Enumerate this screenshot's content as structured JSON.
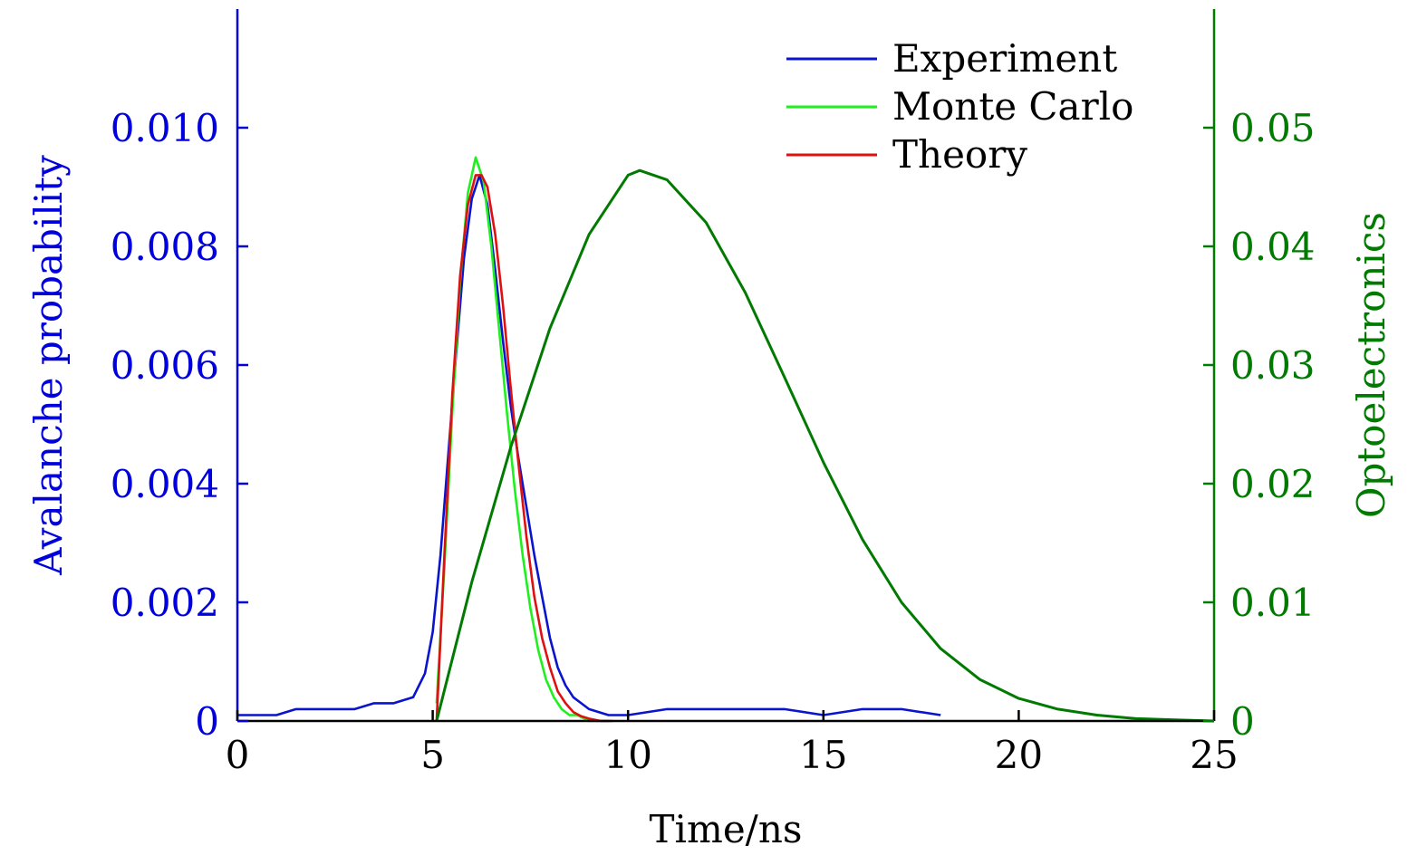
{
  "chart_data": {
    "type": "line",
    "xlabel": "Time/ns",
    "ylabel_left": "Avalanche probability",
    "ylabel_right": "Optoelectronics",
    "xlim": [
      0,
      25
    ],
    "ylim_left": [
      0,
      0.012
    ],
    "ylim_right": [
      0,
      0.06
    ],
    "x_ticks": [
      0,
      5,
      10,
      15,
      20,
      25
    ],
    "x_tick_labels": [
      "0",
      "5",
      "10",
      "15",
      "20",
      "25"
    ],
    "y_left_ticks": [
      0,
      0.002,
      0.004,
      0.006,
      0.008,
      0.01
    ],
    "y_left_tick_labels": [
      "0",
      "0.002",
      "0.004",
      "0.006",
      "0.008",
      "0.010"
    ],
    "y_right_ticks": [
      0,
      0.01,
      0.02,
      0.03,
      0.04,
      0.05
    ],
    "y_right_tick_labels": [
      "0",
      "0.01",
      "0.02",
      "0.03",
      "0.04",
      "0.05"
    ],
    "grid": false,
    "legend_position": "top-right",
    "colors": {
      "left_axis": "#0000dd",
      "right_axis": "#007a00",
      "frame": "#000000"
    },
    "series": [
      {
        "name": "Experiment",
        "axis": "left",
        "color": "#0a14cc",
        "in_legend": true,
        "x": [
          0,
          0.5,
          1.0,
          1.5,
          2.0,
          2.5,
          3.0,
          3.5,
          4.0,
          4.5,
          4.8,
          5.0,
          5.2,
          5.4,
          5.6,
          5.8,
          6.0,
          6.2,
          6.4,
          6.6,
          6.8,
          7.0,
          7.2,
          7.4,
          7.6,
          7.8,
          8.0,
          8.2,
          8.4,
          8.6,
          8.8,
          9.0,
          9.5,
          10.0,
          11.0,
          12.0,
          13.0,
          14.0,
          15.0,
          16.0,
          17.0,
          18.0
        ],
        "y": [
          0.0001,
          0.0001,
          0.0001,
          0.0002,
          0.0002,
          0.0002,
          0.0002,
          0.0003,
          0.0003,
          0.0004,
          0.0008,
          0.0015,
          0.0028,
          0.0045,
          0.0062,
          0.0078,
          0.0088,
          0.0092,
          0.0087,
          0.0076,
          0.0064,
          0.0053,
          0.0044,
          0.0036,
          0.0028,
          0.0021,
          0.0014,
          0.0009,
          0.0006,
          0.0004,
          0.0003,
          0.0002,
          0.0001,
          0.0001,
          0.0002,
          0.0002,
          0.0002,
          0.0002,
          0.0001,
          0.0002,
          0.0002,
          0.0001
        ]
      },
      {
        "name": "Monte Carlo",
        "axis": "left",
        "color": "#1ef01e",
        "in_legend": true,
        "x": [
          5.1,
          5.3,
          5.5,
          5.7,
          5.9,
          6.1,
          6.3,
          6.5,
          6.7,
          6.9,
          7.1,
          7.3,
          7.5,
          7.7,
          7.9,
          8.1,
          8.3,
          8.5,
          8.7,
          9.0,
          9.5
        ],
        "y": [
          0.0003,
          0.0026,
          0.0052,
          0.0074,
          0.0089,
          0.0095,
          0.0091,
          0.008,
          0.0066,
          0.0052,
          0.0039,
          0.0028,
          0.0019,
          0.0012,
          0.0007,
          0.0004,
          0.0002,
          0.0001,
          0.0001,
          0.0,
          0.0
        ]
      },
      {
        "name": "Theory",
        "axis": "left",
        "color": "#dd1111",
        "in_legend": true,
        "x": [
          5.1,
          5.3,
          5.5,
          5.7,
          5.9,
          6.1,
          6.25,
          6.4,
          6.6,
          6.8,
          7.0,
          7.2,
          7.4,
          7.6,
          7.8,
          8.0,
          8.2,
          8.4,
          8.6,
          8.8,
          9.0,
          9.3,
          9.6
        ],
        "y": [
          0.0,
          0.0028,
          0.0055,
          0.0075,
          0.0087,
          0.0092,
          0.0092,
          0.009,
          0.0082,
          0.007,
          0.0056,
          0.0043,
          0.0031,
          0.0021,
          0.0014,
          0.0009,
          0.0005,
          0.0003,
          0.00015,
          8e-05,
          4e-05,
          0.0,
          0.0
        ]
      },
      {
        "name": "",
        "axis": "right",
        "color": "#007a00",
        "in_legend": false,
        "x": [
          5.1,
          6,
          7,
          8,
          9,
          10,
          10.3,
          11,
          12,
          13,
          14,
          15,
          16,
          17,
          18,
          19,
          20,
          21,
          22,
          23,
          24,
          25
        ],
        "y": [
          0.0,
          0.0117,
          0.0231,
          0.0331,
          0.041,
          0.046,
          0.0464,
          0.0456,
          0.042,
          0.0361,
          0.029,
          0.0218,
          0.0153,
          0.01,
          0.0061,
          0.0035,
          0.0019,
          0.001,
          0.0005,
          0.0002,
          0.0001,
          0.0
        ]
      }
    ]
  }
}
